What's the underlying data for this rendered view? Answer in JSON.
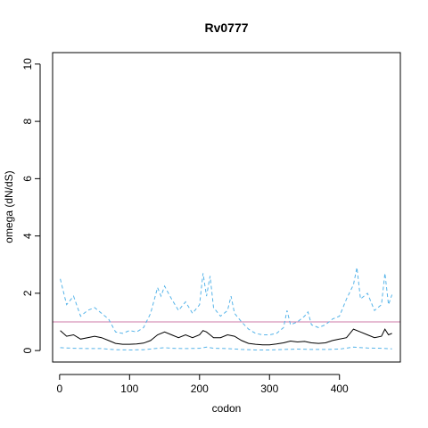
{
  "chart_data": {
    "type": "line",
    "title": "Rv0777",
    "xlabel": "codon",
    "ylabel": "omega (dN/dS)",
    "xlim": [
      -10,
      487
    ],
    "ylim": [
      -0.4,
      10.4
    ],
    "xticks": [
      0,
      100,
      200,
      300,
      400
    ],
    "yticks": [
      0,
      2,
      4,
      6,
      8,
      10
    ],
    "grid": false,
    "reference_line": {
      "y": 1,
      "color": "#cc79a7"
    },
    "colors": {
      "mean": "#000000",
      "bounds": "#56b4e9"
    },
    "series": [
      {
        "style": "solid",
        "x": [
          1,
          10,
          20,
          30,
          40,
          50,
          60,
          70,
          80,
          90,
          100,
          110,
          120,
          130,
          140,
          150,
          160,
          170,
          180,
          190,
          200,
          205,
          210,
          215,
          220,
          230,
          240,
          250,
          260,
          270,
          280,
          290,
          300,
          310,
          320,
          330,
          340,
          350,
          360,
          370,
          380,
          390,
          400,
          410,
          420,
          430,
          440,
          450,
          460,
          465,
          470,
          475
        ],
        "y": [
          0.7,
          0.5,
          0.55,
          0.4,
          0.45,
          0.5,
          0.45,
          0.35,
          0.25,
          0.22,
          0.22,
          0.23,
          0.26,
          0.35,
          0.55,
          0.65,
          0.55,
          0.45,
          0.55,
          0.45,
          0.55,
          0.7,
          0.65,
          0.55,
          0.45,
          0.45,
          0.55,
          0.5,
          0.35,
          0.25,
          0.22,
          0.2,
          0.2,
          0.23,
          0.27,
          0.33,
          0.3,
          0.32,
          0.27,
          0.25,
          0.27,
          0.35,
          0.4,
          0.45,
          0.75,
          0.65,
          0.55,
          0.45,
          0.5,
          0.75,
          0.55,
          0.6
        ]
      },
      {
        "style": "dashed",
        "x": [
          1,
          10,
          20,
          30,
          40,
          50,
          60,
          70,
          80,
          90,
          100,
          110,
          120,
          130,
          140,
          145,
          150,
          160,
          170,
          180,
          190,
          200,
          205,
          210,
          215,
          220,
          230,
          240,
          245,
          250,
          260,
          270,
          280,
          290,
          300,
          310,
          320,
          325,
          330,
          340,
          350,
          355,
          360,
          370,
          380,
          390,
          400,
          410,
          420,
          425,
          430,
          440,
          450,
          460,
          465,
          470,
          475
        ],
        "y": [
          2.5,
          1.6,
          1.9,
          1.2,
          1.4,
          1.5,
          1.3,
          1.1,
          0.65,
          0.6,
          0.7,
          0.65,
          0.8,
          1.3,
          2.2,
          1.9,
          2.25,
          1.8,
          1.4,
          1.7,
          1.3,
          1.6,
          2.7,
          1.9,
          2.6,
          1.5,
          1.2,
          1.4,
          1.9,
          1.3,
          1.0,
          0.75,
          0.6,
          0.55,
          0.55,
          0.6,
          0.8,
          1.4,
          0.9,
          1.0,
          1.2,
          1.35,
          0.9,
          0.8,
          0.9,
          1.1,
          1.2,
          1.8,
          2.3,
          2.9,
          1.8,
          2.0,
          1.4,
          1.6,
          2.7,
          1.6,
          1.95
        ]
      },
      {
        "style": "dashed",
        "x": [
          1,
          20,
          40,
          60,
          80,
          100,
          120,
          140,
          150,
          160,
          180,
          200,
          210,
          220,
          240,
          260,
          280,
          300,
          320,
          340,
          360,
          380,
          400,
          420,
          440,
          460,
          475
        ],
        "y": [
          0.1,
          0.08,
          0.07,
          0.07,
          0.03,
          0.02,
          0.03,
          0.08,
          0.1,
          0.08,
          0.07,
          0.08,
          0.12,
          0.08,
          0.07,
          0.04,
          0.02,
          0.02,
          0.04,
          0.05,
          0.04,
          0.04,
          0.05,
          0.12,
          0.09,
          0.08,
          0.06
        ]
      }
    ]
  }
}
